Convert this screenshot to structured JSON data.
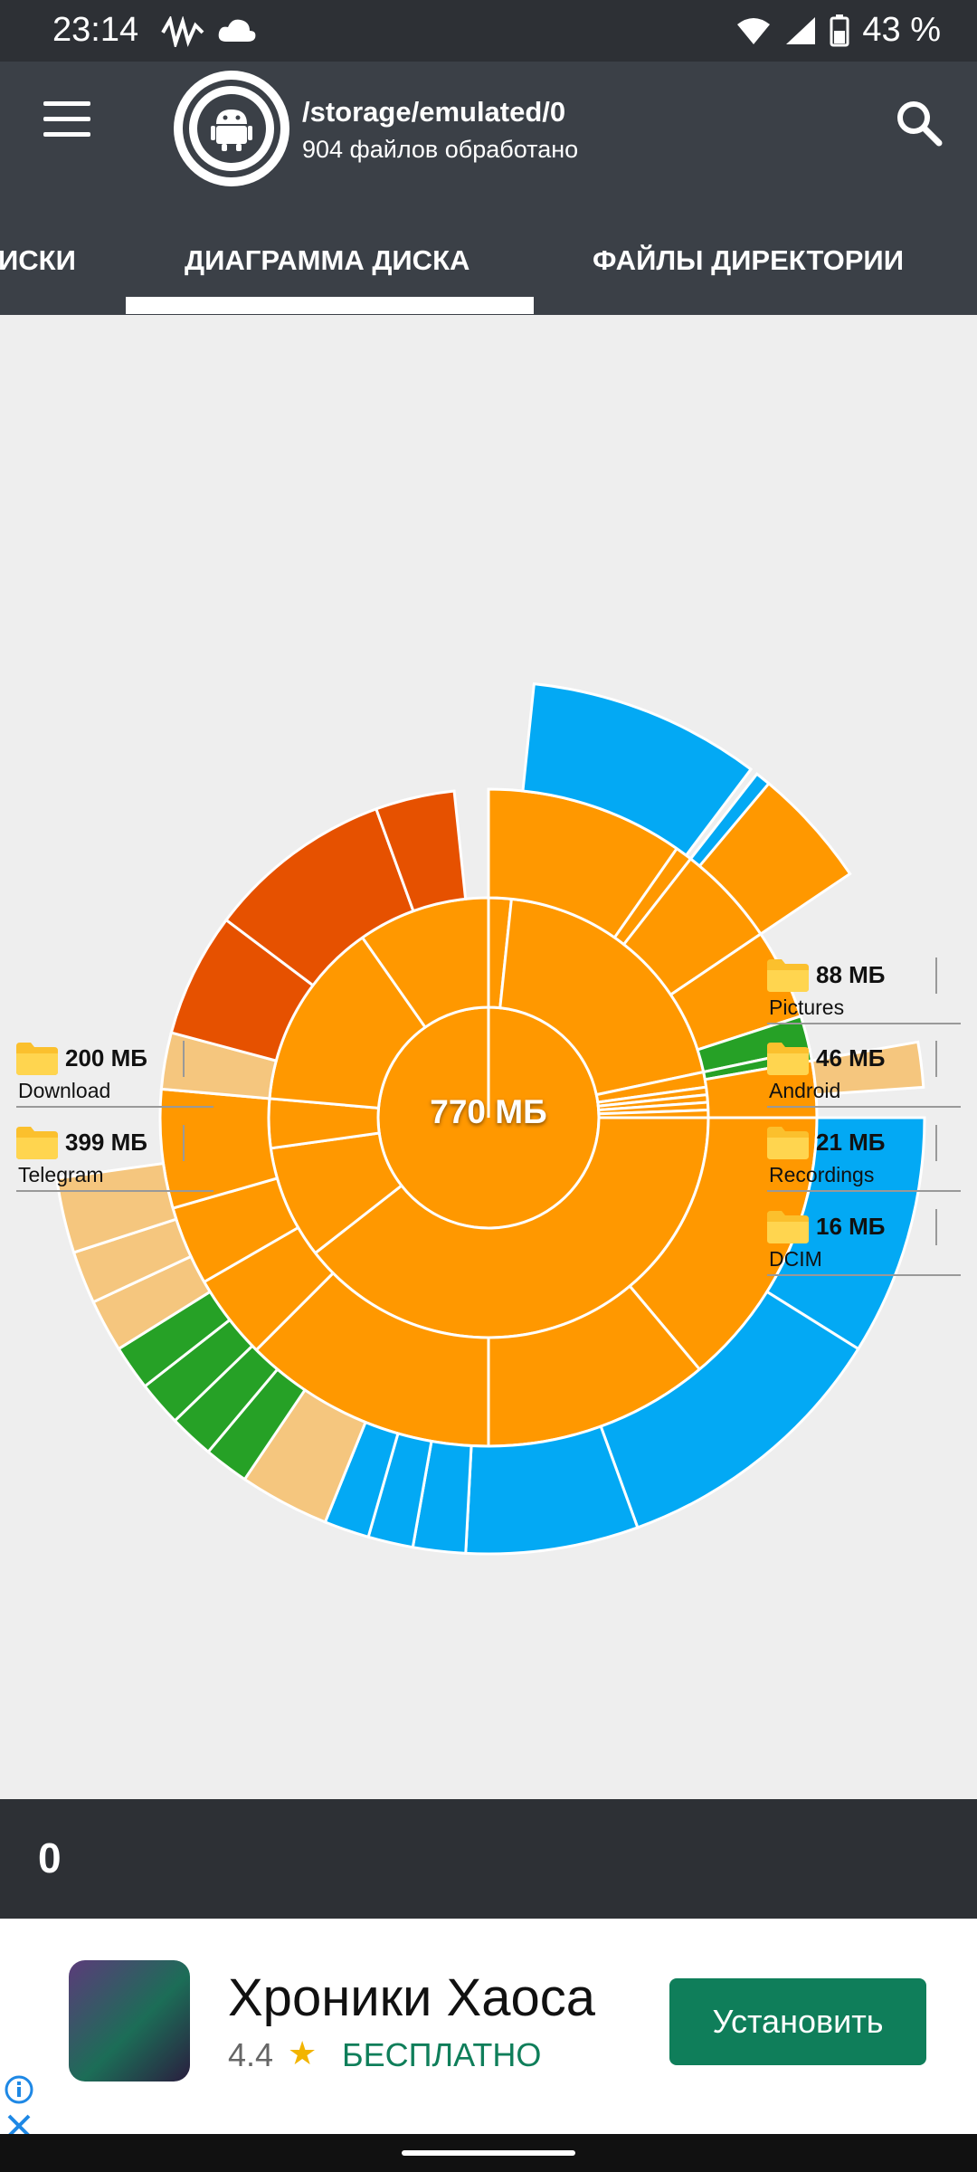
{
  "status_bar": {
    "time": "23:14",
    "battery": "43 %"
  },
  "app_bar": {
    "path": "/storage/emulated/0",
    "subtitle": "904 файлов обработано"
  },
  "tabs": [
    {
      "label": "ИСКИ"
    },
    {
      "label": "ДИАГРАММА ДИСКА",
      "active": true
    },
    {
      "label": "ФАЙЛЫ ДИРЕКТОРИИ"
    }
  ],
  "chart_data": {
    "type": "pie",
    "total_label": "770 МБ",
    "colors": {
      "folder": "#ff9800",
      "large": "#e65100",
      "media": "#03a9f4",
      "apk": "#26a126",
      "misc": "#f5c67e"
    },
    "callouts": [
      {
        "size": "200 МБ",
        "name": "Download",
        "side": "left"
      },
      {
        "size": "399 МБ",
        "name": "Telegram",
        "side": "left"
      },
      {
        "size": "88 МБ",
        "name": "Pictures",
        "side": "right"
      },
      {
        "size": "46 МБ",
        "name": "Android",
        "side": "right"
      },
      {
        "size": "21 МБ",
        "name": "Recordings",
        "side": "right"
      },
      {
        "size": "16 МБ",
        "name": "DCIM",
        "side": "right"
      }
    ]
  },
  "bottom_bar": {
    "value": "0"
  },
  "ad": {
    "title": "Хроники Хаоса",
    "rating": "4.4",
    "price": "БЕСПЛАТНО",
    "button": "Установить"
  }
}
